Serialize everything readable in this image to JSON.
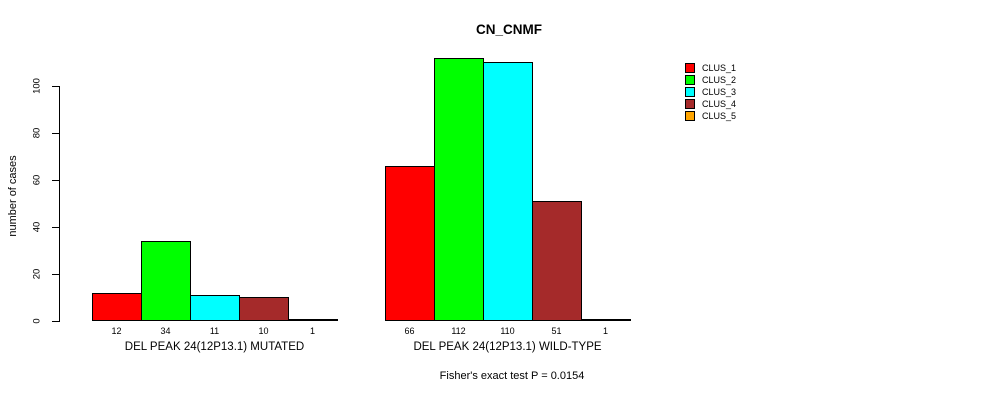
{
  "title": "CN_CNMF",
  "footer": "Fisher's exact test P = 0.0154",
  "chart_data": {
    "type": "bar",
    "title": "CN_CNMF",
    "ylabel": "number of cases",
    "xlabel": "",
    "yticks": [
      0,
      20,
      40,
      60,
      80,
      100
    ],
    "ylim": [
      0,
      112
    ],
    "grid": false,
    "legend_position": "right",
    "legend": [
      {
        "name": "CLUS_1",
        "color": "#FF0000"
      },
      {
        "name": "CLUS_2",
        "color": "#00FF00"
      },
      {
        "name": "CLUS_3",
        "color": "#00FFFF"
      },
      {
        "name": "CLUS_4",
        "color": "#A52A2A"
      },
      {
        "name": "CLUS_5",
        "color": "#FFA500"
      }
    ],
    "groups": [
      {
        "label": "DEL PEAK 24(12P13.1) MUTATED",
        "values": [
          12,
          34,
          11,
          10,
          1
        ]
      },
      {
        "label": "DEL PEAK 24(12P13.1) WILD-TYPE",
        "values": [
          66,
          112,
          110,
          51,
          1
        ]
      }
    ],
    "annotation": "Fisher's exact test P = 0.0154"
  }
}
